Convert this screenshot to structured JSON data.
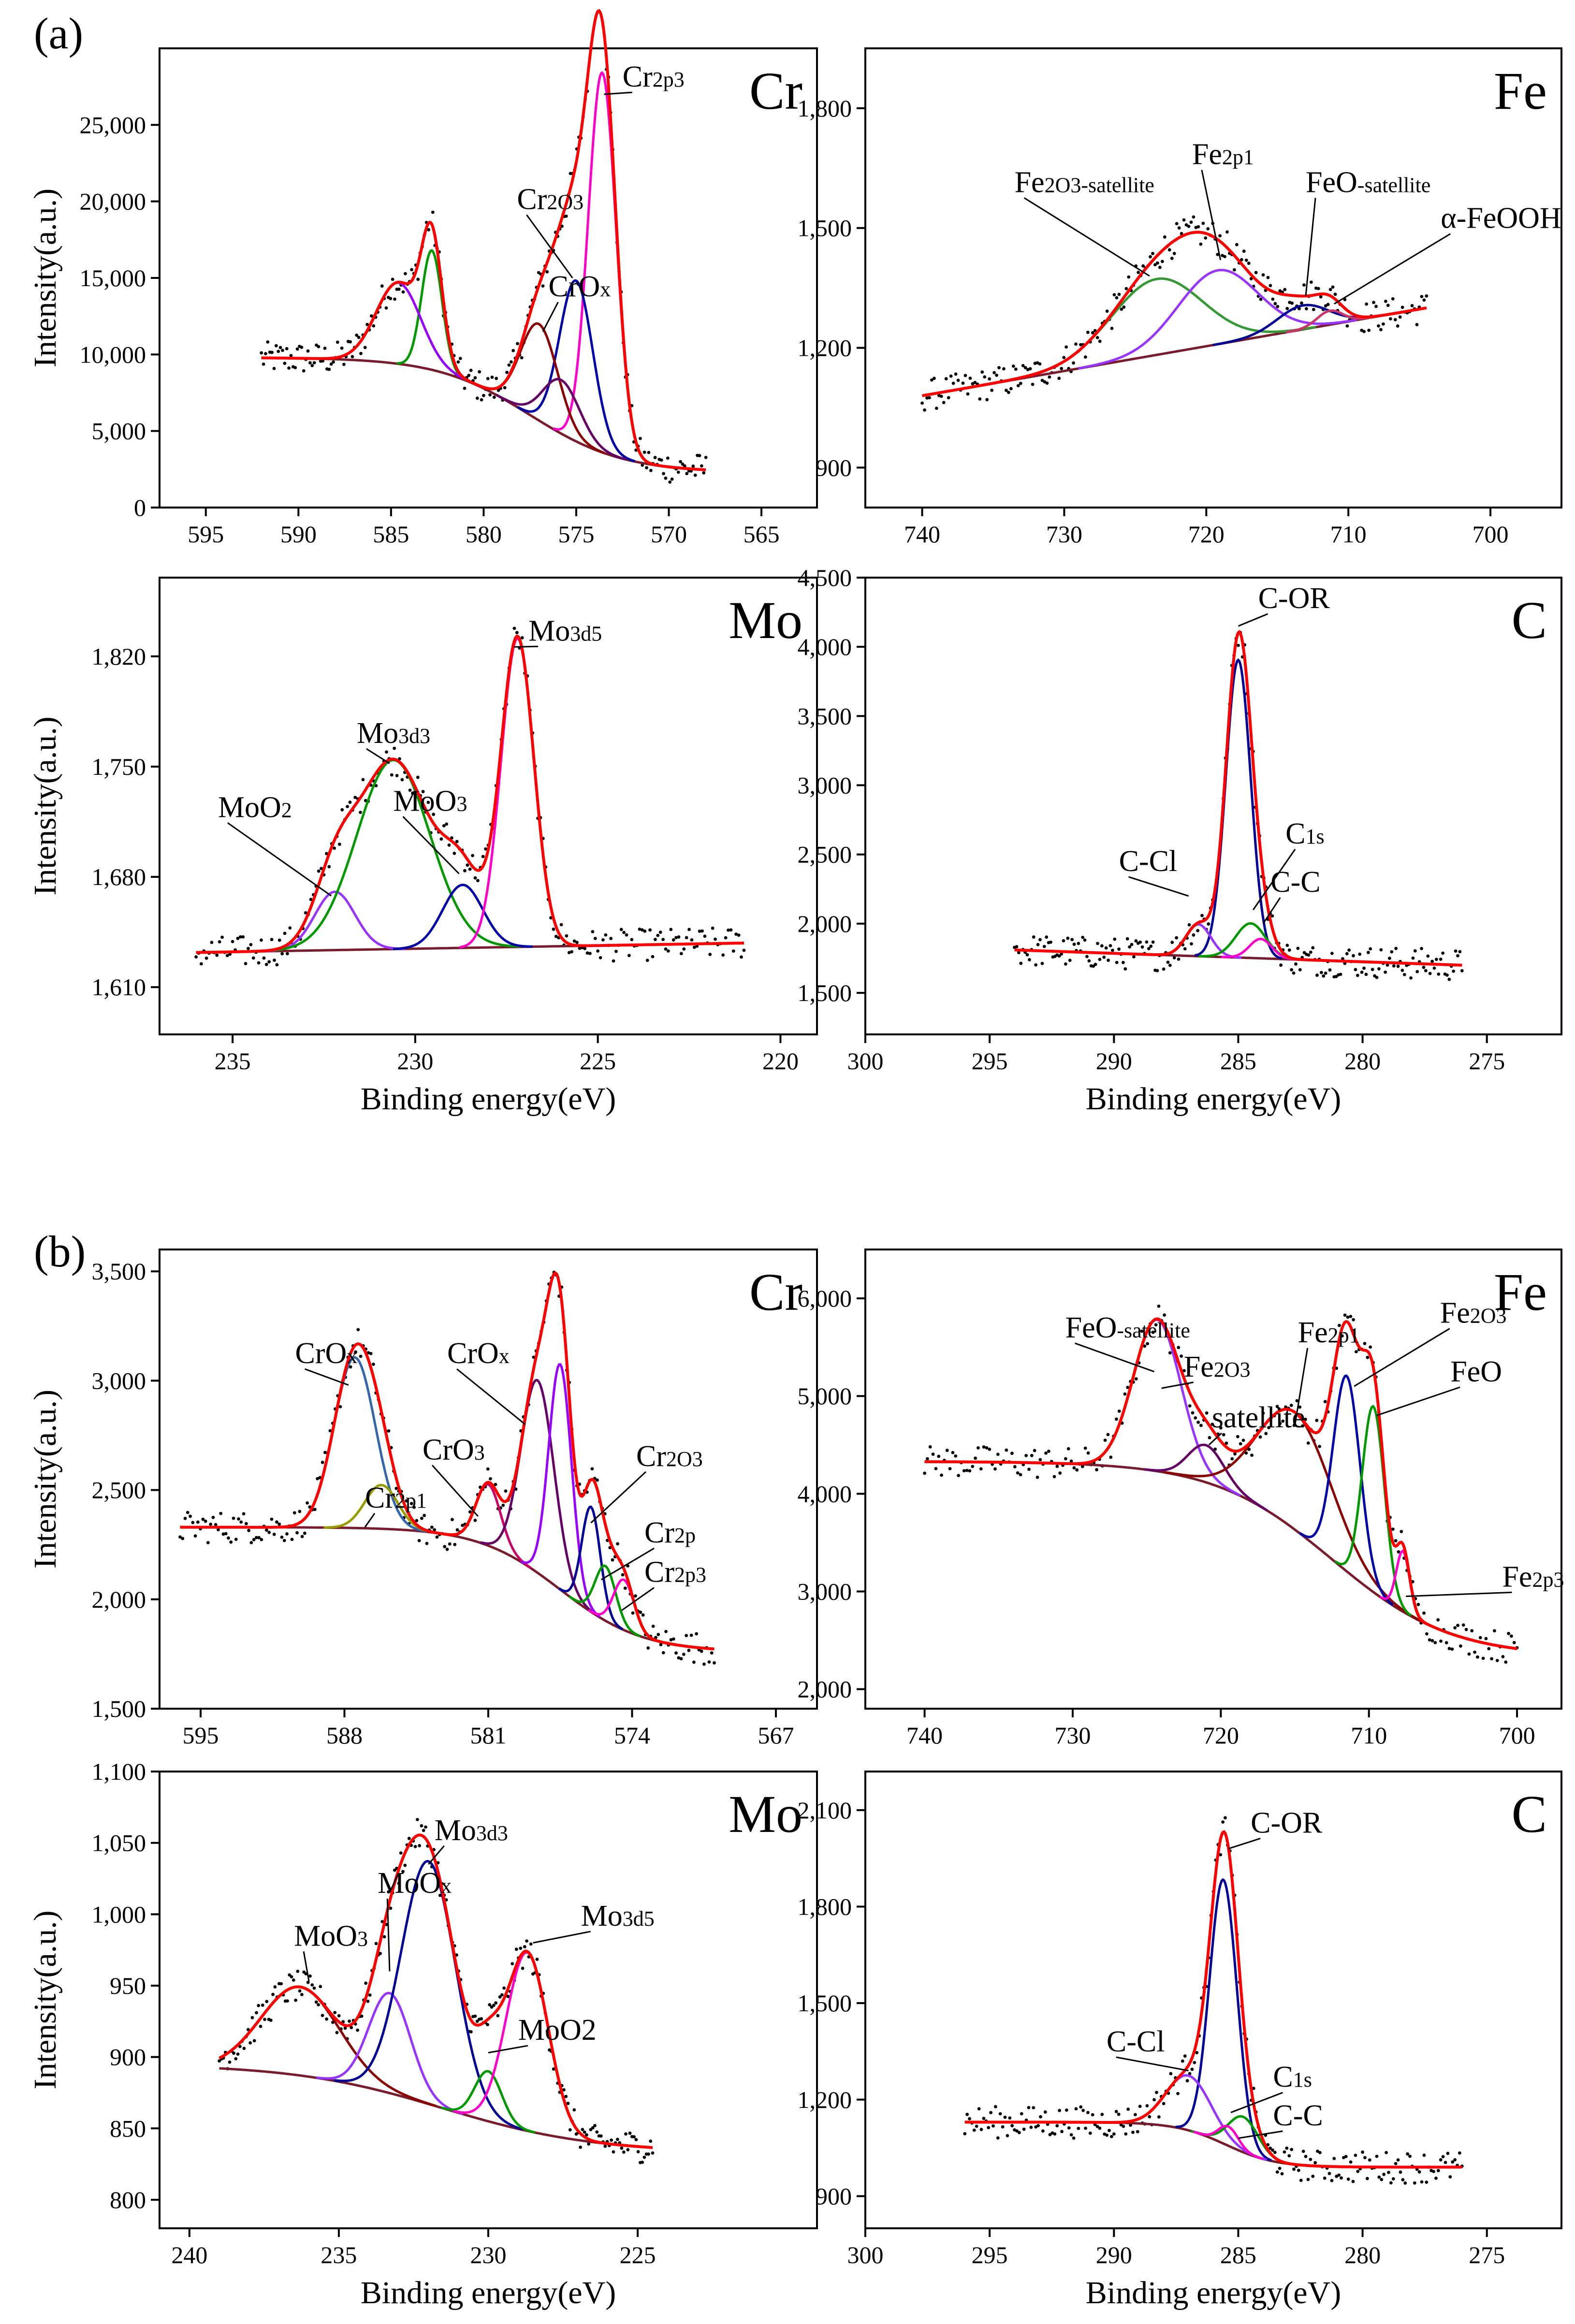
{
  "figure_labels": {
    "a": "(a)",
    "b": "(b)"
  },
  "chart_data": [
    {
      "id": "a-cr",
      "type": "line",
      "element": "Cr",
      "ylabel": "Intensity(a.u.)",
      "xlabel": "",
      "xlim": [
        597.5,
        562.0
      ],
      "ylim": [
        0,
        30000
      ],
      "xticks": [
        595,
        590,
        585,
        580,
        575,
        570,
        565
      ],
      "yticks": [
        0,
        5000,
        10000,
        15000,
        20000,
        25000
      ],
      "ytick_labels": [
        "0",
        "5,000",
        "10,000",
        "15,000",
        "20,000",
        "25,000"
      ],
      "x_range": [
        592,
        568
      ],
      "baseline": {
        "type": "shirley",
        "start": 9800,
        "end": 2300,
        "center": 577.5,
        "width": 2.5
      },
      "series": [
        {
          "name": "Cr2p3",
          "color": "#ff00cc",
          "center": 573.6,
          "amp": 24800,
          "width": 0.75
        },
        {
          "name": "Cr2O3",
          "color": "#0000aa",
          "center": 575.0,
          "amp": 10500,
          "width": 0.9
        },
        {
          "name": "CrOx",
          "color": "#8b0000",
          "center": 577.0,
          "amp": 6300,
          "width": 1.0
        },
        {
          "name": "CrOx-2",
          "color": "#660066",
          "center": 575.8,
          "amp": 3500,
          "width": 1.0
        },
        {
          "name": "green",
          "color": "#009900",
          "center": 582.8,
          "amp": 7800,
          "width": 0.55
        },
        {
          "name": "violet",
          "color": "#9900ff",
          "center": 584.6,
          "amp": 5300,
          "width": 1.2
        }
      ],
      "annotations": [
        {
          "text": "Cr2p3",
          "main": "Cr",
          "sub": "2p3",
          "x": 572.5,
          "y": 27500,
          "tx": 573.5,
          "ty": 27000
        },
        {
          "text": "Cr2O3",
          "main": "Cr",
          "sub": "2O3",
          "x": 578.2,
          "y": 19500,
          "tx": 575.2,
          "ty": 15000
        },
        {
          "text": "CrOx",
          "main": "CrO",
          "sub": "x",
          "x": 576.5,
          "y": 13800,
          "tx": 576.8,
          "ty": 11500
        }
      ]
    },
    {
      "id": "a-fe",
      "type": "line",
      "element": "Fe",
      "ylabel": "",
      "xlabel": "",
      "xlim": [
        744,
        695
      ],
      "ylim": [
        800,
        1950
      ],
      "xticks": [
        740,
        730,
        720,
        710,
        700
      ],
      "yticks": [
        900,
        1200,
        1500,
        1800
      ],
      "ytick_labels": [
        "900",
        "1,200",
        "1,500",
        "1,800"
      ],
      "x_range": [
        740,
        704.5
      ],
      "baseline": {
        "type": "linear",
        "start": 1080,
        "end": 1300
      },
      "series": [
        {
          "name": "Fe2O3-satellite",
          "color": "#339933",
          "center": 723.5,
          "amp": 190,
          "width": 3.2
        },
        {
          "name": "Fe2p1",
          "color": "#9933ff",
          "center": 719.2,
          "amp": 185,
          "width": 2.8
        },
        {
          "name": "FeO-satellite",
          "color": "#000099",
          "center": 713.2,
          "amp": 60,
          "width": 1.8
        },
        {
          "name": "a-FeOOH",
          "color": "#cc3366",
          "center": 711.3,
          "amp": 35,
          "width": 0.9
        }
      ],
      "annotations": [
        {
          "text": "Fe2O3-satellite",
          "main": "Fe",
          "sub": "2O3-satellite",
          "x": 733.5,
          "y": 1590,
          "tx": 724.0,
          "ty": 1380
        },
        {
          "text": "Fe2p1",
          "main": "Fe",
          "sub": "2p1",
          "x": 721.0,
          "y": 1660,
          "tx": 719.0,
          "ty": 1420
        },
        {
          "text": "FeO-satellite",
          "main": "FeO",
          "sub": "-satellite",
          "x": 713.0,
          "y": 1590,
          "tx": 713.0,
          "ty": 1330
        },
        {
          "text": "α-FeOOH",
          "main": "α-FeOOH",
          "sub": "",
          "x": 703.5,
          "y": 1500,
          "tx": 711.0,
          "ty": 1310
        }
      ]
    },
    {
      "id": "a-mo",
      "type": "line",
      "element": "Mo",
      "ylabel": "Intensity(a.u.)",
      "xlabel": "Binding energy(eV)",
      "xlim": [
        237,
        219
      ],
      "ylim": [
        1580,
        1870
      ],
      "xticks": [
        235,
        230,
        225,
        220
      ],
      "yticks": [
        1610,
        1680,
        1750,
        1820
      ],
      "ytick_labels": [
        "1,610",
        "1,680",
        "1,750",
        "1,820"
      ],
      "x_range": [
        236,
        221
      ],
      "baseline": {
        "type": "linear",
        "start": 1632,
        "end": 1638
      },
      "series": [
        {
          "name": "MoO2",
          "color": "#9933ff",
          "center": 232.2,
          "amp": 37,
          "width": 0.55
        },
        {
          "name": "Mo3d3",
          "color": "#009900",
          "center": 230.6,
          "amp": 120,
          "width": 1.0
        },
        {
          "name": "MoO3",
          "color": "#0000aa",
          "center": 228.7,
          "amp": 40,
          "width": 0.55
        },
        {
          "name": "Mo3d5",
          "color": "#ff00cc",
          "center": 227.2,
          "amp": 196,
          "width": 0.45
        }
      ],
      "annotations": [
        {
          "text": "MoO2",
          "main": "MoO",
          "sub": "2",
          "x": 235.4,
          "y": 1718,
          "tx": 232.3,
          "ty": 1668
        },
        {
          "text": "Mo3d3",
          "main": "Mo",
          "sub": "3d3",
          "x": 231.6,
          "y": 1765,
          "tx": 230.7,
          "ty": 1752
        },
        {
          "text": "MoO3",
          "main": "MoO",
          "sub": "3",
          "x": 230.6,
          "y": 1722,
          "tx": 228.8,
          "ty": 1682
        },
        {
          "text": "Mo3d5",
          "main": "Mo",
          "sub": "3d5",
          "x": 226.9,
          "y": 1830,
          "tx": 227.3,
          "ty": 1826
        }
      ]
    },
    {
      "id": "a-c",
      "type": "line",
      "element": "C",
      "ylabel": "",
      "xlabel": "Binding energy(eV)",
      "xlim": [
        300,
        272
      ],
      "ylim": [
        1200,
        4500
      ],
      "xticks": [
        300,
        295,
        290,
        285,
        280,
        275
      ],
      "yticks": [
        1500,
        2000,
        2500,
        3000,
        3500,
        4000,
        4500
      ],
      "ytick_labels": [
        "1,500",
        "2,000",
        "2,500",
        "3,000",
        "3,500",
        "4,000",
        "4,500"
      ],
      "x_range": [
        294,
        276
      ],
      "baseline": {
        "type": "linear",
        "start": 1810,
        "end": 1700
      },
      "series": [
        {
          "name": "C-OR",
          "color": "#000099",
          "center": 285.0,
          "amp": 2150,
          "width": 0.5
        },
        {
          "name": "C-Cl",
          "color": "#9933ff",
          "center": 286.6,
          "amp": 230,
          "width": 0.5
        },
        {
          "name": "C1s",
          "color": "#009900",
          "center": 284.5,
          "amp": 250,
          "width": 0.6
        },
        {
          "name": "C-C",
          "color": "#ff00cc",
          "center": 284.1,
          "amp": 140,
          "width": 0.45
        }
      ],
      "annotations": [
        {
          "text": "C-OR",
          "main": "C-OR",
          "sub": "",
          "x": 284.2,
          "y": 4280,
          "tx": 285.0,
          "ty": 4150
        },
        {
          "text": "C-Cl",
          "main": "C-Cl",
          "sub": "",
          "x": 289.8,
          "y": 2380,
          "tx": 287.0,
          "ty": 2200
        },
        {
          "text": "C1s",
          "main": "C",
          "sub": "1s",
          "x": 283.1,
          "y": 2580,
          "tx": 284.4,
          "ty": 2100
        },
        {
          "text": "C-C",
          "main": "C-C",
          "sub": "",
          "x": 283.7,
          "y": 2230,
          "tx": 284.0,
          "ty": 2000
        }
      ]
    },
    {
      "id": "b-cr",
      "type": "line",
      "element": "Cr",
      "ylabel": "Intensity(a.u.)",
      "xlabel": "",
      "xlim": [
        597,
        565
      ],
      "ylim": [
        1500,
        3600
      ],
      "xticks": [
        595,
        588,
        581,
        574,
        567
      ],
      "yticks": [
        1500,
        2000,
        2500,
        3000,
        3500
      ],
      "ytick_labels": [
        "1,500",
        "2,000",
        "2,500",
        "3,000",
        "3,500"
      ],
      "x_range": [
        596,
        570
      ],
      "baseline": {
        "type": "shirley",
        "start": 2330,
        "end": 1760,
        "center": 577.5,
        "width": 2.0
      },
      "series": [
        {
          "name": "CrOx-blue",
          "color": "#3366aa",
          "center": 587.5,
          "amp": 780,
          "width": 1.0
        },
        {
          "name": "Cr2p1",
          "color": "#999900",
          "center": 586.2,
          "amp": 200,
          "width": 0.8
        },
        {
          "name": "CrO3",
          "color": "#cc0066",
          "center": 581.0,
          "amp": 280,
          "width": 0.6
        },
        {
          "name": "CrOx",
          "color": "#660066",
          "center": 578.6,
          "amp": 880,
          "width": 0.8
        },
        {
          "name": "violet",
          "color": "#9900ff",
          "center": 577.5,
          "amp": 1030,
          "width": 0.55
        },
        {
          "name": "Cr2O3",
          "color": "#000099",
          "center": 576.0,
          "amp": 480,
          "width": 0.45
        },
        {
          "name": "Cr2p",
          "color": "#009900",
          "center": 575.3,
          "amp": 250,
          "width": 0.5
        },
        {
          "name": "Cr2p3",
          "color": "#ff00cc",
          "center": 574.4,
          "amp": 230,
          "width": 0.5
        }
      ],
      "annotations": [
        {
          "text": "CrOx",
          "main": "CrO",
          "sub": "x",
          "x": 590.4,
          "y": 3080,
          "tx": 587.8,
          "ty": 2980
        },
        {
          "text": "CrOx",
          "main": "CrO",
          "sub": "x",
          "x": 583.0,
          "y": 3080,
          "tx": 579.2,
          "ty": 2800
        },
        {
          "text": "CrO3",
          "main": "CrO",
          "sub": "3",
          "x": 584.2,
          "y": 2640,
          "tx": 581.5,
          "ty": 2380
        },
        {
          "text": "Cr2p1",
          "main": "Cr",
          "sub": "2p1",
          "x": 587.0,
          "y": 2420,
          "tx": 587.0,
          "ty": 2330
        },
        {
          "text": "Cr2O3",
          "main": "Cr",
          "sub": "2O3",
          "x": 573.8,
          "y": 2610,
          "tx": 576.0,
          "ty": 2350
        },
        {
          "text": "Cr2p",
          "main": "Cr",
          "sub": "2p",
          "x": 573.4,
          "y": 2260,
          "tx": 575.5,
          "ty": 2090
        },
        {
          "text": "Cr2p3",
          "main": "Cr",
          "sub": "2p3",
          "x": 573.4,
          "y": 2080,
          "tx": 574.5,
          "ty": 1950
        }
      ]
    },
    {
      "id": "b-fe",
      "type": "line",
      "element": "Fe",
      "ylabel": "",
      "xlabel": "",
      "xlim": [
        744,
        697
      ],
      "ylim": [
        1800,
        6500
      ],
      "xticks": [
        740,
        730,
        720,
        710,
        700
      ],
      "yticks": [
        2000,
        3000,
        4000,
        5000,
        6000
      ],
      "ytick_labels": [
        "2,000",
        "3,000",
        "4,000",
        "5,000",
        "6,000"
      ],
      "x_range": [
        740,
        700
      ],
      "baseline": {
        "type": "shirley",
        "start": 4330,
        "end": 2330,
        "center": 712.5,
        "width": 4.0
      },
      "series": [
        {
          "name": "FeO-satellite",
          "color": "#9933ff",
          "center": 724.3,
          "amp": 1550,
          "width": 1.6
        },
        {
          "name": "Fe2O3-satellite",
          "color": "#660066",
          "center": 721.0,
          "amp": 380,
          "width": 1.2
        },
        {
          "name": "Fe2p1",
          "color": "#8b0000",
          "center": 715.0,
          "amp": 1200,
          "width": 2.5
        },
        {
          "name": "Fe2O3",
          "color": "#0000aa",
          "center": 711.5,
          "amp": 2000,
          "width": 0.9
        },
        {
          "name": "FeO",
          "color": "#009900",
          "center": 709.7,
          "amp": 1900,
          "width": 0.75
        },
        {
          "name": "Fe2p3",
          "color": "#ff00cc",
          "center": 707.7,
          "amp": 620,
          "width": 0.45
        }
      ],
      "annotations": [
        {
          "text": "FeO-satellite",
          "main": "FeO",
          "sub": "-satellite",
          "x": 730.5,
          "y": 5600,
          "tx": 724.5,
          "ty": 5250
        },
        {
          "text": "Fe2O3",
          "main": "Fe",
          "sub": "2O3",
          "x": 722.5,
          "y": 5200,
          "tx": 724.0,
          "ty": 5080
        },
        {
          "text": "satellite",
          "main": "satellite",
          "sub": "",
          "x": 720.6,
          "y": 4680,
          "tx": 720.8,
          "ty": 4500
        },
        {
          "text": "Fe2p1",
          "main": "Fe",
          "sub": "2p1",
          "x": 714.8,
          "y": 5550,
          "tx": 715.0,
          "ty": 4700
        },
        {
          "text": "Fe2O3",
          "main": "Fe",
          "sub": "2O3",
          "x": 705.2,
          "y": 5750,
          "tx": 711.0,
          "ty": 5100
        },
        {
          "text": "FeO",
          "main": "FeO",
          "sub": "",
          "x": 704.5,
          "y": 5150,
          "tx": 709.5,
          "ty": 4800
        },
        {
          "text": "Fe2p3",
          "main": "Fe",
          "sub": "2p3",
          "x": 701.0,
          "y": 3050,
          "tx": 707.5,
          "ty": 2950
        }
      ]
    },
    {
      "id": "b-mo",
      "type": "line",
      "element": "Mo",
      "ylabel": "Intensity(a.u.)",
      "xlabel": "Binding energy(eV)",
      "xlim": [
        241,
        219
      ],
      "ylim": [
        780,
        1100
      ],
      "xticks": [
        240,
        235,
        230,
        225
      ],
      "yticks": [
        800,
        850,
        900,
        950,
        1000,
        1050,
        1100
      ],
      "ytick_labels": [
        "800",
        "850",
        "900",
        "950",
        "1,000",
        "1,050",
        "1,100"
      ],
      "x_range": [
        239,
        224.5
      ],
      "baseline": {
        "type": "shirley",
        "start": 895,
        "end": 833,
        "center": 231.5,
        "width": 2.5
      },
      "series": [
        {
          "name": "MoO3",
          "color": "#8b0000",
          "center": 236.3,
          "amp": 62,
          "width": 1.3
        },
        {
          "name": "MoOx",
          "color": "#9933ff",
          "center": 233.3,
          "amp": 70,
          "width": 0.7
        },
        {
          "name": "Mo3d3",
          "color": "#000099",
          "center": 232.0,
          "amp": 170,
          "width": 0.9
        },
        {
          "name": "MoO2",
          "color": "#009900",
          "center": 230.0,
          "amp": 35,
          "width": 0.45
        },
        {
          "name": "Mo3d5",
          "color": "#ff00cc",
          "center": 228.7,
          "amp": 125,
          "width": 0.7
        }
      ],
      "annotations": [
        {
          "text": "MoO3",
          "main": "MoO",
          "sub": "3",
          "x": 236.5,
          "y": 978,
          "tx": 236.0,
          "ty": 953
        },
        {
          "text": "MoOx",
          "main": "MoO",
          "sub": "x",
          "x": 233.7,
          "y": 1015,
          "tx": 233.3,
          "ty": 960
        },
        {
          "text": "Mo3d3",
          "main": "Mo",
          "sub": "3d3",
          "x": 231.8,
          "y": 1052,
          "tx": 232.0,
          "ty": 1035
        },
        {
          "text": "MoO2",
          "main": "MoO2",
          "sub": "",
          "x": 229.0,
          "y": 912,
          "tx": 230.0,
          "ty": 903
        },
        {
          "text": "Mo3d5",
          "main": "Mo",
          "sub": "3d5",
          "x": 226.9,
          "y": 992,
          "tx": 228.5,
          "ty": 980
        }
      ]
    },
    {
      "id": "b-c",
      "type": "line",
      "element": "C",
      "ylabel": "",
      "xlabel": "Binding energy(eV)",
      "xlim": [
        300,
        272
      ],
      "ylim": [
        800,
        2220
      ],
      "xticks": [
        300,
        295,
        290,
        285,
        280,
        275
      ],
      "yticks": [
        900,
        1200,
        1500,
        1800,
        2100
      ],
      "ytick_labels": [
        "900",
        "1,200",
        "1,500",
        "1,800",
        "2,100"
      ],
      "x_range": [
        296,
        276
      ],
      "baseline": {
        "type": "shirley",
        "start": 1130,
        "end": 990,
        "center": 285.5,
        "width": 1.0
      },
      "series": [
        {
          "name": "C-OR",
          "color": "#000099",
          "center": 285.6,
          "amp": 820,
          "width": 0.55
        },
        {
          "name": "C-Cl",
          "color": "#9933ff",
          "center": 287.0,
          "amp": 170,
          "width": 0.9
        },
        {
          "name": "C1s",
          "color": "#009900",
          "center": 284.8,
          "amp": 110,
          "width": 0.6
        },
        {
          "name": "C-C",
          "color": "#ff00cc",
          "center": 285.4,
          "amp": 60,
          "width": 0.4
        }
      ],
      "annotations": [
        {
          "text": "C-OR",
          "main": "C-OR",
          "sub": "",
          "x": 284.5,
          "y": 2030,
          "tx": 285.4,
          "ty": 1980
        },
        {
          "text": "C-Cl",
          "main": "C-Cl",
          "sub": "",
          "x": 290.3,
          "y": 1350,
          "tx": 287.0,
          "ty": 1290
        },
        {
          "text": "C1s",
          "main": "C",
          "sub": "1s",
          "x": 283.6,
          "y": 1240,
          "tx": 285.3,
          "ty": 1160
        },
        {
          "text": "C-C",
          "main": "C-C",
          "sub": "",
          "x": 283.6,
          "y": 1120,
          "tx": 285.0,
          "ty": 1080
        }
      ]
    }
  ]
}
